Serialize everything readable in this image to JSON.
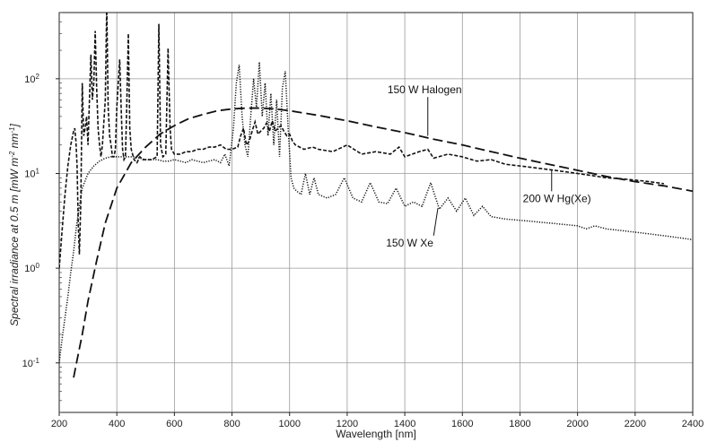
{
  "chart_data": {
    "type": "line",
    "xlabel": "Wavelength [nm]",
    "ylabel": "Spectral irradiance at 0.5 m [mW m",
    "ylabel_sup1": "-2",
    "ylabel_mid": " nm",
    "ylabel_sup2": "-1",
    "ylabel_end": "]",
    "xlim": [
      200,
      2400
    ],
    "ylim": [
      0.03,
      500
    ],
    "yscale": "log",
    "grid": true,
    "x_ticks": [
      {
        "value": 200,
        "label": "200"
      },
      {
        "value": 400,
        "label": "400"
      },
      {
        "value": 600,
        "label": "600"
      },
      {
        "value": 800,
        "label": "800"
      },
      {
        "value": 1000,
        "label": "1000"
      },
      {
        "value": 1200,
        "label": "1200"
      },
      {
        "value": 1400,
        "label": "1400"
      },
      {
        "value": 1600,
        "label": "1600"
      },
      {
        "value": 1800,
        "label": "1800"
      },
      {
        "value": 2000,
        "label": "2000"
      },
      {
        "value": 2200,
        "label": "2200"
      },
      {
        "value": 2400,
        "label": "2400"
      }
    ],
    "y_ticks": [
      {
        "value": 0.1,
        "base": "10",
        "exp": "-1"
      },
      {
        "value": 1,
        "base": "10",
        "exp": "0"
      },
      {
        "value": 10,
        "base": "10",
        "exp": "1"
      },
      {
        "value": 100,
        "base": "10",
        "exp": "2"
      }
    ],
    "series": [
      {
        "name": "150 W Halogen",
        "style": "long-dash",
        "x": [
          250,
          260,
          280,
          300,
          330,
          360,
          400,
          450,
          500,
          550,
          600,
          650,
          700,
          750,
          800,
          850,
          900,
          950,
          1000,
          1100,
          1200,
          1300,
          1400,
          1500,
          1600,
          1700,
          1800,
          1900,
          2000,
          2100,
          2200,
          2300,
          2400
        ],
        "y": [
          0.07,
          0.1,
          0.2,
          0.45,
          1.2,
          3.0,
          7.0,
          13,
          19,
          26,
          32,
          38,
          42,
          46,
          48,
          49,
          49,
          48,
          46,
          41,
          36,
          31,
          27,
          23,
          20,
          17,
          14.5,
          12.5,
          10.8,
          9.3,
          8.2,
          7.4,
          6.5
        ]
      },
      {
        "name": "200 W Hg(Xe)",
        "style": "short-dash",
        "x": [
          200,
          210,
          220,
          230,
          240,
          250,
          254,
          258,
          262,
          266,
          270,
          275,
          280,
          285,
          290,
          295,
          300,
          305,
          310,
          315,
          320,
          325,
          330,
          335,
          340,
          345,
          350,
          355,
          360,
          365,
          370,
          375,
          380,
          385,
          390,
          395,
          400,
          405,
          410,
          415,
          420,
          425,
          430,
          435,
          440,
          445,
          450,
          460,
          470,
          480,
          490,
          500,
          520,
          540,
          546,
          552,
          560,
          570,
          578,
          585,
          590,
          600,
          620,
          640,
          660,
          680,
          700,
          720,
          740,
          760,
          780,
          800,
          820,
          830,
          840,
          850,
          860,
          870,
          880,
          890,
          900,
          910,
          920,
          930,
          940,
          950,
          960,
          970,
          980,
          990,
          1000,
          1010,
          1020,
          1050,
          1080,
          1100,
          1150,
          1200,
          1250,
          1300,
          1350,
          1380,
          1400,
          1450,
          1480,
          1500,
          1550,
          1600,
          1650,
          1700,
          1750,
          1800,
          1850,
          1900,
          1950,
          2000,
          2050,
          2100,
          2150,
          2200,
          2250,
          2300
        ],
        "y": [
          1.0,
          2.5,
          6,
          12,
          20,
          28,
          30,
          22,
          12,
          3,
          1.4,
          5,
          90,
          25,
          30,
          40,
          20,
          60,
          180,
          60,
          90,
          320,
          80,
          30,
          20,
          15,
          20,
          35,
          60,
          600,
          50,
          25,
          20,
          15,
          15,
          18,
          50,
          90,
          160,
          50,
          18,
          14,
          15,
          60,
          300,
          30,
          18,
          14,
          13,
          15,
          14,
          14,
          14,
          15,
          380,
          20,
          15,
          16,
          210,
          30,
          18,
          16,
          16,
          17,
          17,
          18,
          18,
          19,
          19,
          20,
          18,
          18,
          19,
          25,
          30,
          20,
          22,
          28,
          35,
          26,
          28,
          30,
          34,
          28,
          36,
          28,
          30,
          32,
          28,
          25,
          26,
          22,
          20,
          18,
          19,
          18,
          17,
          20,
          16,
          17,
          16,
          19,
          15,
          17,
          18,
          14.5,
          16,
          15,
          13.5,
          14,
          12.5,
          12,
          11.5,
          11,
          10.5,
          10,
          9.5,
          9,
          8.8,
          8.5,
          8.2,
          7.8
        ]
      },
      {
        "name": "150 W Xe",
        "style": "dotted",
        "x": [
          200,
          210,
          220,
          230,
          240,
          250,
          260,
          270,
          280,
          300,
          320,
          340,
          360,
          380,
          400,
          420,
          440,
          460,
          480,
          500,
          520,
          540,
          560,
          580,
          600,
          620,
          640,
          660,
          680,
          700,
          720,
          740,
          760,
          775,
          790,
          805,
          815,
          825,
          835,
          845,
          855,
          865,
          875,
          885,
          895,
          905,
          915,
          925,
          935,
          945,
          955,
          965,
          975,
          985,
          995,
          1005,
          1015,
          1025,
          1040,
          1055,
          1070,
          1085,
          1100,
          1130,
          1160,
          1190,
          1220,
          1250,
          1280,
          1310,
          1340,
          1370,
          1400,
          1430,
          1460,
          1490,
          1520,
          1550,
          1580,
          1610,
          1640,
          1670,
          1700,
          1750,
          1800,
          1850,
          1900,
          1950,
          2000,
          2030,
          2060,
          2100,
          2150,
          2200,
          2250,
          2300,
          2350,
          2400
        ],
        "y": [
          0.1,
          0.18,
          0.3,
          0.5,
          0.9,
          1.5,
          2.8,
          4.5,
          7,
          10,
          12,
          13.5,
          14.5,
          15,
          15,
          15,
          15,
          15,
          14.5,
          14,
          14,
          14,
          13.5,
          13.5,
          14,
          13.5,
          13,
          14,
          13.5,
          13,
          13.5,
          14,
          13,
          16,
          12,
          30,
          90,
          140,
          40,
          20,
          15,
          40,
          100,
          50,
          150,
          40,
          90,
          25,
          70,
          20,
          60,
          15,
          80,
          120,
          30,
          9,
          7,
          6.5,
          6,
          10,
          6,
          9,
          6,
          5.5,
          6,
          9,
          5.5,
          5,
          8,
          5,
          4.8,
          7,
          4.5,
          5,
          4.5,
          8,
          4.2,
          5.5,
          4,
          5.5,
          3.6,
          4.5,
          3.5,
          3.3,
          3.2,
          3.1,
          3.0,
          2.9,
          2.8,
          2.6,
          2.8,
          2.6,
          2.5,
          2.4,
          2.3,
          2.2,
          2.1,
          2.0
        ]
      }
    ],
    "annotations": [
      {
        "text": "150 W Halogen",
        "series": "150 W Halogen",
        "text_x": 1340,
        "text_y": 70,
        "point_x": 1480,
        "point_y": 25
      },
      {
        "text": "200 W Hg(Xe)",
        "series": "200 W Hg(Xe)",
        "text_x": 1810,
        "text_y": 5.0,
        "point_x": 1910,
        "point_y": 11
      },
      {
        "text": "150 W Xe",
        "series": "150 W Xe",
        "text_x": 1335,
        "text_y": 1.7,
        "point_x": 1515,
        "point_y": 4.3
      }
    ]
  }
}
